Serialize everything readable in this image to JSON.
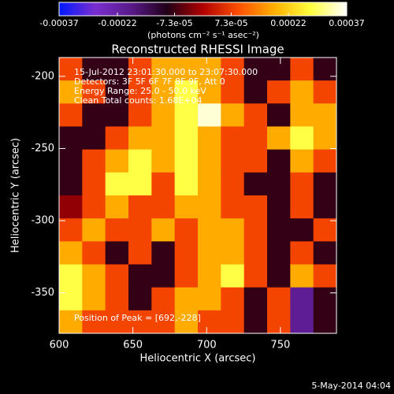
{
  "chart_data": {
    "type": "heatmap",
    "title": "Reconstructed RHESSI Image",
    "colorbar_label": "(photons cm⁻² s⁻¹ asec⁻²)",
    "x_label": "Heliocentric X (arcsec)",
    "y_label": "Heliocentric Y (arcsec)",
    "xlim": [
      600,
      788
    ],
    "ylim": [
      -378,
      -187
    ],
    "xticks": [
      600,
      650,
      700,
      750
    ],
    "yticks": [
      -200,
      -250,
      -300,
      -350
    ],
    "zlim": [
      -0.00037,
      0.00037
    ],
    "zticks": [
      -0.00037,
      -0.00022,
      {
        "value": -7.3e-05,
        "label": "-7.3e-05"
      },
      {
        "value": 7.3e-05,
        "label": "7.3e-05"
      },
      0.00022,
      0.00037
    ],
    "colorscale": [
      "#0018ff",
      "#7a2ed0",
      "#5a1a8a",
      "#200018",
      "#b00000",
      "#ff5000",
      "#ffb000",
      "#ffff40",
      "#ffffff"
    ],
    "annotations": [
      "15-Jul-2012 23:01:30.000 to 23:07:30.000",
      "Detectors: 3F 5F 6F 7F 8F 9F, Att 0",
      "Energy Range: 25.0 - 50.0 keV",
      "Clean    Total counts: 1.68E+04"
    ],
    "peak_label": "Position of Peak = [692,-228]",
    "footer": "5-May-2014 04:04",
    "z": [
      [
        8e-05,
        -8e-05,
        -8e-05,
        8e-05,
        0.00018,
        0.00018,
        0.00018,
        8e-05,
        -8e-05,
        -8e-05,
        8e-05,
        -8e-05
      ],
      [
        0.00018,
        8e-05,
        -8e-05,
        8e-05,
        0.00018,
        0.00028,
        0.00018,
        8e-05,
        -8e-05,
        8e-05,
        0.00018,
        8e-05
      ],
      [
        8e-05,
        -8e-05,
        -8e-05,
        8e-05,
        0.00018,
        0.00028,
        0.00035,
        0.00018,
        8e-05,
        -8e-05,
        0.00018,
        0.00018
      ],
      [
        -8e-05,
        -8e-05,
        8e-05,
        0.00018,
        0.00018,
        0.00028,
        0.00018,
        8e-05,
        8e-05,
        0.00018,
        0.00028,
        0.00018
      ],
      [
        -8e-05,
        8e-05,
        0.00018,
        0.00028,
        0.00018,
        0.00028,
        0.00018,
        8e-05,
        8e-05,
        -8e-05,
        0.00018,
        8e-05
      ],
      [
        -8e-05,
        8e-05,
        0.00028,
        0.00028,
        8e-05,
        0.00028,
        0.00018,
        8e-05,
        -8e-05,
        -8e-05,
        8e-05,
        -8e-05
      ],
      [
        -2e-05,
        8e-05,
        0.00018,
        8e-05,
        8e-05,
        0.00018,
        0.00018,
        8e-05,
        8e-05,
        -8e-05,
        8e-05,
        -8e-05
      ],
      [
        8e-05,
        0.00018,
        8e-05,
        8e-05,
        0.00018,
        8e-05,
        0.00018,
        0.00018,
        8e-05,
        -8e-05,
        -8e-05,
        8e-05
      ],
      [
        0.00018,
        8e-05,
        -8e-05,
        8e-05,
        -8e-05,
        8e-05,
        0.00018,
        0.00018,
        8e-05,
        -8e-05,
        8e-05,
        -8e-05
      ],
      [
        0.00028,
        0.00018,
        8e-05,
        -8e-05,
        -8e-05,
        8e-05,
        0.00018,
        0.00028,
        8e-05,
        -8e-05,
        0.00018,
        8e-05
      ],
      [
        0.00028,
        0.00018,
        8e-05,
        -8e-05,
        8e-05,
        0.00018,
        0.00018,
        8e-05,
        -8e-05,
        8e-05,
        -0.0002,
        -8e-05
      ],
      [
        0.00018,
        8e-05,
        8e-05,
        8e-05,
        8e-05,
        0.00018,
        8e-05,
        8e-05,
        -8e-05,
        8e-05,
        -0.0002,
        -8e-05
      ]
    ]
  }
}
